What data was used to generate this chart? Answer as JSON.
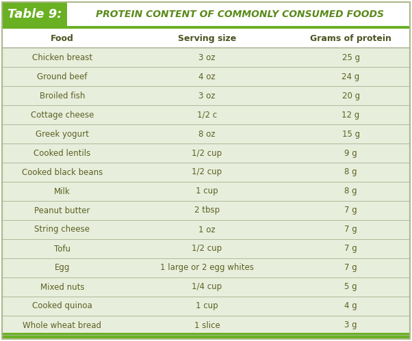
{
  "title_label": "Table 9:",
  "title_text": "PROTEIN CONTENT OF COMMONLY CONSUMED FOODS",
  "col_headers": [
    "Food",
    "Serving size",
    "Grams of protein"
  ],
  "rows": [
    [
      "Chicken breast",
      "3 oz",
      "25 g"
    ],
    [
      "Ground beef",
      "4 oz",
      "24 g"
    ],
    [
      "Broiled fish",
      "3 oz",
      "20 g"
    ],
    [
      "Cottage cheese",
      "1/2 c",
      "12 g"
    ],
    [
      "Greek yogurt",
      "8 oz",
      "15 g"
    ],
    [
      "Cooked lentils",
      "1/2 cup",
      "9 g"
    ],
    [
      "Cooked black beans",
      "1/2 cup",
      "8 g"
    ],
    [
      "Milk",
      "1 cup",
      "8 g"
    ],
    [
      "Peanut butter",
      "2 tbsp",
      "7 g"
    ],
    [
      "String cheese",
      "1 oz",
      "7 g"
    ],
    [
      "Tofu",
      "1/2 cup",
      "7 g"
    ],
    [
      "Egg",
      "1 large or 2 egg whites",
      "7 g"
    ],
    [
      "Mixed nuts",
      "1/4 cup",
      "5 g"
    ],
    [
      "Cooked quinoa",
      "1 cup",
      "4 g"
    ],
    [
      "Whole wheat bread",
      "1 slice",
      "3 g"
    ]
  ],
  "title_label_bg": "#6ab023",
  "title_label_color": "#ffffff",
  "title_text_color": "#5a8a1a",
  "col_header_color": "#4a5520",
  "row_bg": "#e8eedc",
  "col_header_bg": "#ffffff",
  "row_text_color": "#5a6020",
  "divider_color": "#b0b898",
  "green_line_color": "#6ab023",
  "outer_border_color": "#aab888",
  "bottom_bar_color": "#6ab023",
  "title_bar_bg": "#ffffff",
  "figw": 6.02,
  "figh": 4.99,
  "dpi": 100
}
